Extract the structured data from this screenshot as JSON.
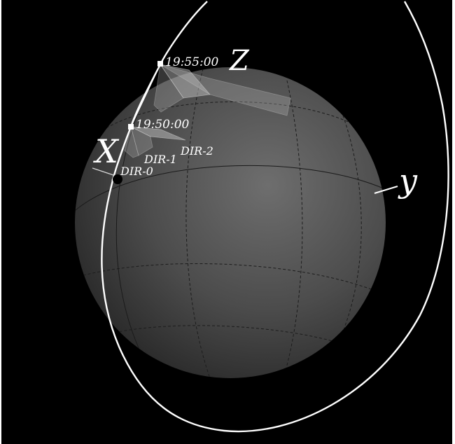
{
  "labels": {
    "time_upper": "19:55:00",
    "time_lower": "19:50:00",
    "axis_x": "X",
    "axis_y": "y",
    "axis_z": "Z",
    "dir_0": "DIR-0",
    "dir_1": "DIR-1",
    "dir_2": "DIR-2"
  },
  "colors": {
    "background": "#000000",
    "sphere": "#4a4a4a",
    "orbit": "#ffffff",
    "labels": "#ffffff"
  }
}
